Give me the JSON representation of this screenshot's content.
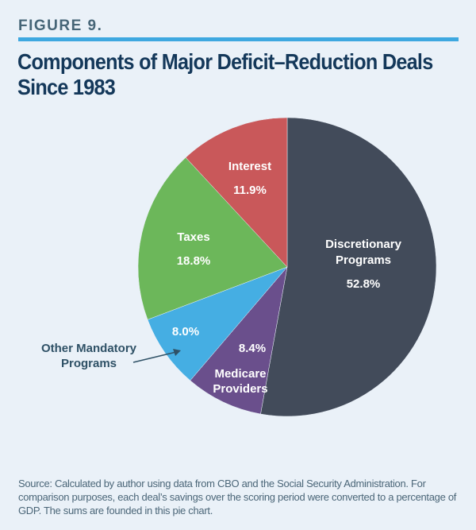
{
  "figure_label": "FIGURE 9.",
  "title": "Components of Major Deficit–Reduction Deals Since 1983",
  "source": "Source: Calculated by author using data from CBO and the Social Security Administration. For comparison purposes, each deal’s savings over the scoring period were converted to a percentage of GDP. The sums are founded in this pie chart.",
  "chart_data": {
    "type": "pie",
    "title": "Components of Major Deficit–Reduction Deals Since 1983",
    "start": "12 o'clock, clockwise",
    "slices": [
      {
        "label": "Discretionary Programs",
        "value": 52.8,
        "value_label": "52.8%",
        "color": "#424b5a"
      },
      {
        "label": "Medicare Providers",
        "value": 8.4,
        "value_label": "8.4%",
        "color": "#6a4f8c"
      },
      {
        "label": "Other Mandatory Programs",
        "value": 8.0,
        "value_label": "8.0%",
        "color": "#45aee3"
      },
      {
        "label": "Taxes",
        "value": 18.8,
        "value_label": "18.8%",
        "color": "#6cb75a"
      },
      {
        "label": "Interest",
        "value": 11.9,
        "value_label": "11.9%",
        "color": "#c9585a"
      }
    ]
  }
}
